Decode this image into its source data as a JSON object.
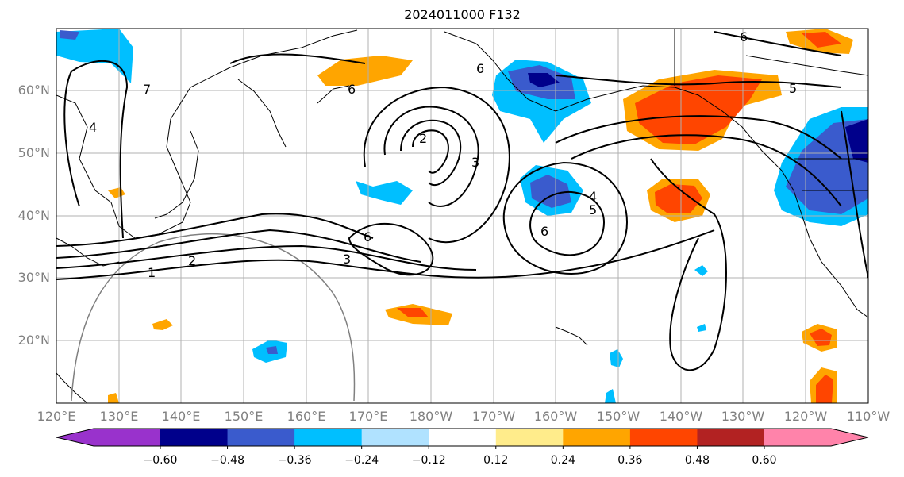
{
  "title": "2024011000 F132",
  "lat_labels": [
    "60°N",
    "50°N",
    "40°N",
    "30°N",
    "20°N"
  ],
  "lon_labels": [
    "120°E",
    "130°E",
    "140°E",
    "150°E",
    "160°E",
    "170°E",
    "180°W",
    "170°W",
    "160°W",
    "150°W",
    "140°W",
    "130°W",
    "120°W",
    "110°W"
  ],
  "contour_labels": [
    "1",
    "2",
    "3",
    "6",
    "6",
    "2",
    "3",
    "4",
    "5",
    "6",
    "6",
    "7",
    "4",
    "5",
    "6"
  ],
  "colorbar": {
    "colors": [
      "#9932cc",
      "#00008b",
      "#3a5bcd",
      "#00bfff",
      "#b0e2ff",
      "#ffffff",
      "#ffec8b",
      "#ffa500",
      "#ff4500",
      "#b22222",
      "#ff83aa"
    ],
    "tick_labels": [
      "−0.60",
      "−0.48",
      "−0.36",
      "−0.24",
      "−0.12",
      "0.12",
      "0.24",
      "0.36",
      "0.48",
      "0.60"
    ]
  }
}
